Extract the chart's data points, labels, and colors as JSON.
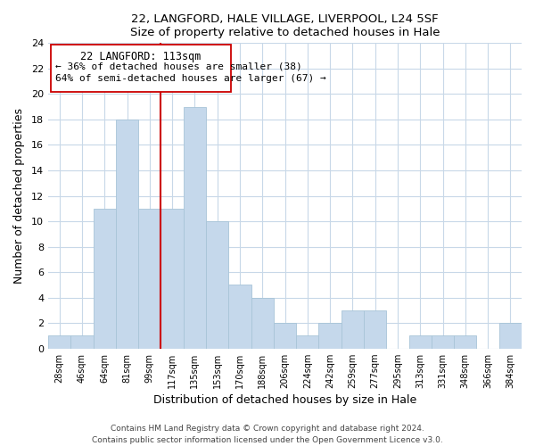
{
  "title": "22, LANGFORD, HALE VILLAGE, LIVERPOOL, L24 5SF",
  "subtitle": "Size of property relative to detached houses in Hale",
  "xlabel": "Distribution of detached houses by size in Hale",
  "ylabel": "Number of detached properties",
  "bar_labels": [
    "28sqm",
    "46sqm",
    "64sqm",
    "81sqm",
    "99sqm",
    "117sqm",
    "135sqm",
    "153sqm",
    "170sqm",
    "188sqm",
    "206sqm",
    "224sqm",
    "242sqm",
    "259sqm",
    "277sqm",
    "295sqm",
    "313sqm",
    "331sqm",
    "348sqm",
    "366sqm",
    "384sqm"
  ],
  "bar_values": [
    1,
    1,
    11,
    18,
    11,
    11,
    19,
    10,
    5,
    4,
    2,
    1,
    2,
    3,
    3,
    0,
    1,
    1,
    1,
    0,
    2
  ],
  "bar_color": "#c5d8eb",
  "bar_edge_color": "#a8c4d8",
  "vline_color": "#cc0000",
  "annotation_title": "22 LANGFORD: 113sqm",
  "annotation_line1": "← 36% of detached houses are smaller (38)",
  "annotation_line2": "64% of semi-detached houses are larger (67) →",
  "annotation_box_edge": "#cc0000",
  "ylim": [
    0,
    24
  ],
  "yticks": [
    0,
    2,
    4,
    6,
    8,
    10,
    12,
    14,
    16,
    18,
    20,
    22,
    24
  ],
  "footer1": "Contains HM Land Registry data © Crown copyright and database right 2024.",
  "footer2": "Contains public sector information licensed under the Open Government Licence v3.0.",
  "bg_color": "#ffffff",
  "grid_color": "#c8d8e8"
}
